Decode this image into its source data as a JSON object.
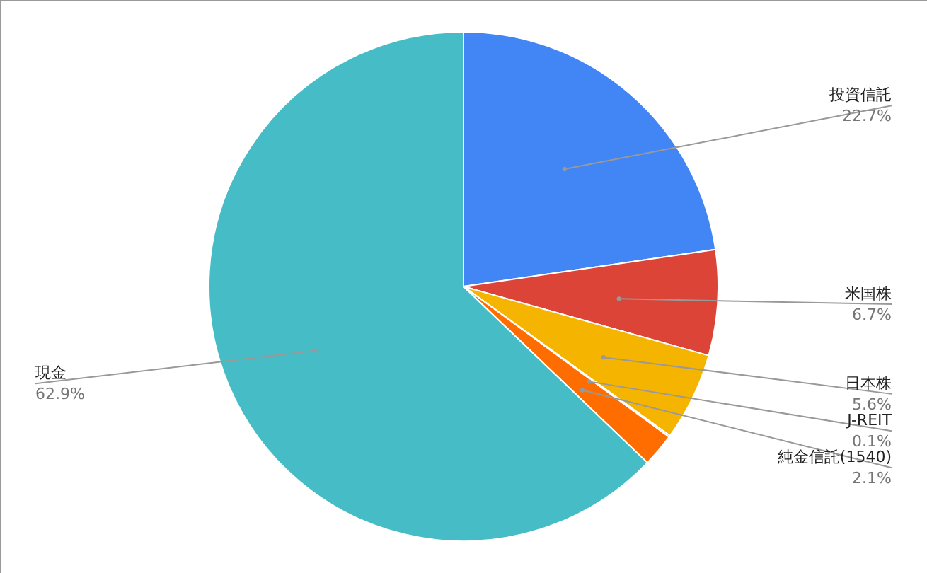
{
  "chart_data": {
    "type": "pie",
    "categories": [
      "投資信託",
      "米国株",
      "日本株",
      "J-REIT",
      "純金信託(1540)",
      "現金"
    ],
    "values": [
      22.7,
      6.7,
      5.6,
      0.1,
      2.1,
      62.9
    ],
    "colors": [
      "#4285f4",
      "#db4437",
      "#f4b400",
      "#0f9d58",
      "#ff6d01",
      "#46bdc6"
    ],
    "value_labels": [
      "22.7%",
      "6.7%",
      "5.6%",
      "0.1%",
      "2.1%",
      "62.9%"
    ]
  }
}
